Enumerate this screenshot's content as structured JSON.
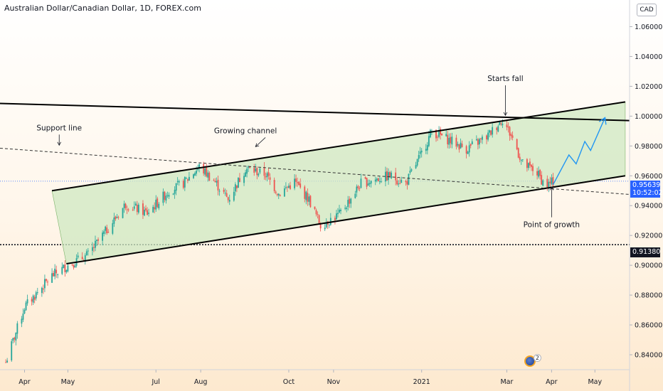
{
  "header": {
    "title": "Australian Dollar/Canadian Dollar, 1D, FOREX.com"
  },
  "axis": {
    "currency": "CAD"
  },
  "price_tags": {
    "last_price": "0.95639",
    "countdown": "10:52:02",
    "level": "0.91380"
  },
  "event_badge": {
    "count": "2"
  },
  "colors": {
    "up": "#26a69a",
    "down": "#ef5350",
    "channel_fill": "#cfe8c2",
    "projection": "#2196f3",
    "last_price": "#2962ff"
  },
  "chart_data": {
    "type": "candlestick",
    "symbol": "AUDCAD",
    "timeframe": "1D",
    "ylim": [
      0.83,
      1.075
    ],
    "xlim": [
      "2020-03-15",
      "2021-05-25"
    ],
    "y_ticks": [
      "1.06000",
      "1.04000",
      "1.02000",
      "1.00000",
      "0.98000",
      "0.96000",
      "0.94000",
      "0.92000",
      "0.90000",
      "0.88000",
      "0.86000",
      "0.84000"
    ],
    "x_ticks": [
      {
        "label": "Apr",
        "date": "2020-04-01"
      },
      {
        "label": "May",
        "date": "2020-05-01"
      },
      {
        "label": "Jul",
        "date": "2020-07-01"
      },
      {
        "label": "Aug",
        "date": "2020-08-01"
      },
      {
        "label": "Oct",
        "date": "2020-10-01"
      },
      {
        "label": "Nov",
        "date": "2020-11-01"
      },
      {
        "label": "2021",
        "date": "2021-01-01"
      },
      {
        "label": "Mar",
        "date": "2021-03-01"
      },
      {
        "label": "Apr",
        "date": "2021-04-01"
      },
      {
        "label": "May",
        "date": "2021-05-01"
      }
    ],
    "price_path": [
      [
        "2020-03-19",
        0.835
      ],
      [
        "2020-04-01",
        0.872
      ],
      [
        "2020-04-20",
        0.893
      ],
      [
        "2020-05-01",
        0.9
      ],
      [
        "2020-05-15",
        0.907
      ],
      [
        "2020-06-01",
        0.929
      ],
      [
        "2020-06-10",
        0.941
      ],
      [
        "2020-06-25",
        0.935
      ],
      [
        "2020-07-10",
        0.95
      ],
      [
        "2020-07-20",
        0.955
      ],
      [
        "2020-07-31",
        0.966
      ],
      [
        "2020-08-10",
        0.957
      ],
      [
        "2020-08-20",
        0.944
      ],
      [
        "2020-09-01",
        0.965
      ],
      [
        "2020-09-15",
        0.961
      ],
      [
        "2020-09-24",
        0.948
      ],
      [
        "2020-10-05",
        0.956
      ],
      [
        "2020-10-15",
        0.944
      ],
      [
        "2020-10-23",
        0.927
      ],
      [
        "2020-11-05",
        0.934
      ],
      [
        "2020-11-20",
        0.955
      ],
      [
        "2020-12-10",
        0.96
      ],
      [
        "2020-12-21",
        0.955
      ],
      [
        "2021-01-01",
        0.975
      ],
      [
        "2021-01-08",
        0.99
      ],
      [
        "2021-01-20",
        0.984
      ],
      [
        "2021-02-01",
        0.978
      ],
      [
        "2021-02-15",
        0.986
      ],
      [
        "2021-02-26",
        0.998
      ],
      [
        "2021-03-05",
        0.985
      ],
      [
        "2021-03-12",
        0.968
      ],
      [
        "2021-03-22",
        0.962
      ],
      [
        "2021-03-28",
        0.953
      ],
      [
        "2021-04-02",
        0.956
      ]
    ],
    "last_price": 0.95639,
    "horizontal_level": 0.9138,
    "drawings": {
      "resistance_line": [
        [
          "2020-03-15",
          1.0085
        ],
        [
          "2021-05-25",
          0.997
        ]
      ],
      "dashed_support": [
        [
          "2020-03-15",
          0.9785
        ],
        [
          "2021-05-25",
          0.9475
        ]
      ],
      "channel_upper": [
        [
          "2020-04-20",
          0.95
        ],
        [
          "2021-05-22",
          1.0095
        ]
      ],
      "channel_lower": [
        [
          "2020-04-30",
          0.901
        ],
        [
          "2021-05-22",
          0.96
        ]
      ],
      "projection": [
        [
          "2021-04-02",
          0.954
        ],
        [
          "2021-04-13",
          0.974
        ],
        [
          "2021-04-18",
          0.968
        ],
        [
          "2021-04-24",
          0.983
        ],
        [
          "2021-04-28",
          0.977
        ],
        [
          "2021-05-08",
          0.999
        ]
      ]
    },
    "annotations": [
      {
        "text": "Support line",
        "date": "2020-04-25",
        "price": 0.9905
      },
      {
        "text": "Growing channel",
        "date": "2020-09-01",
        "price": 0.9885
      },
      {
        "text": "Starts fall",
        "date": "2021-02-28",
        "price": 1.0235
      },
      {
        "text": "Point of growth",
        "date": "2021-04-01",
        "price": 0.9255
      }
    ]
  }
}
